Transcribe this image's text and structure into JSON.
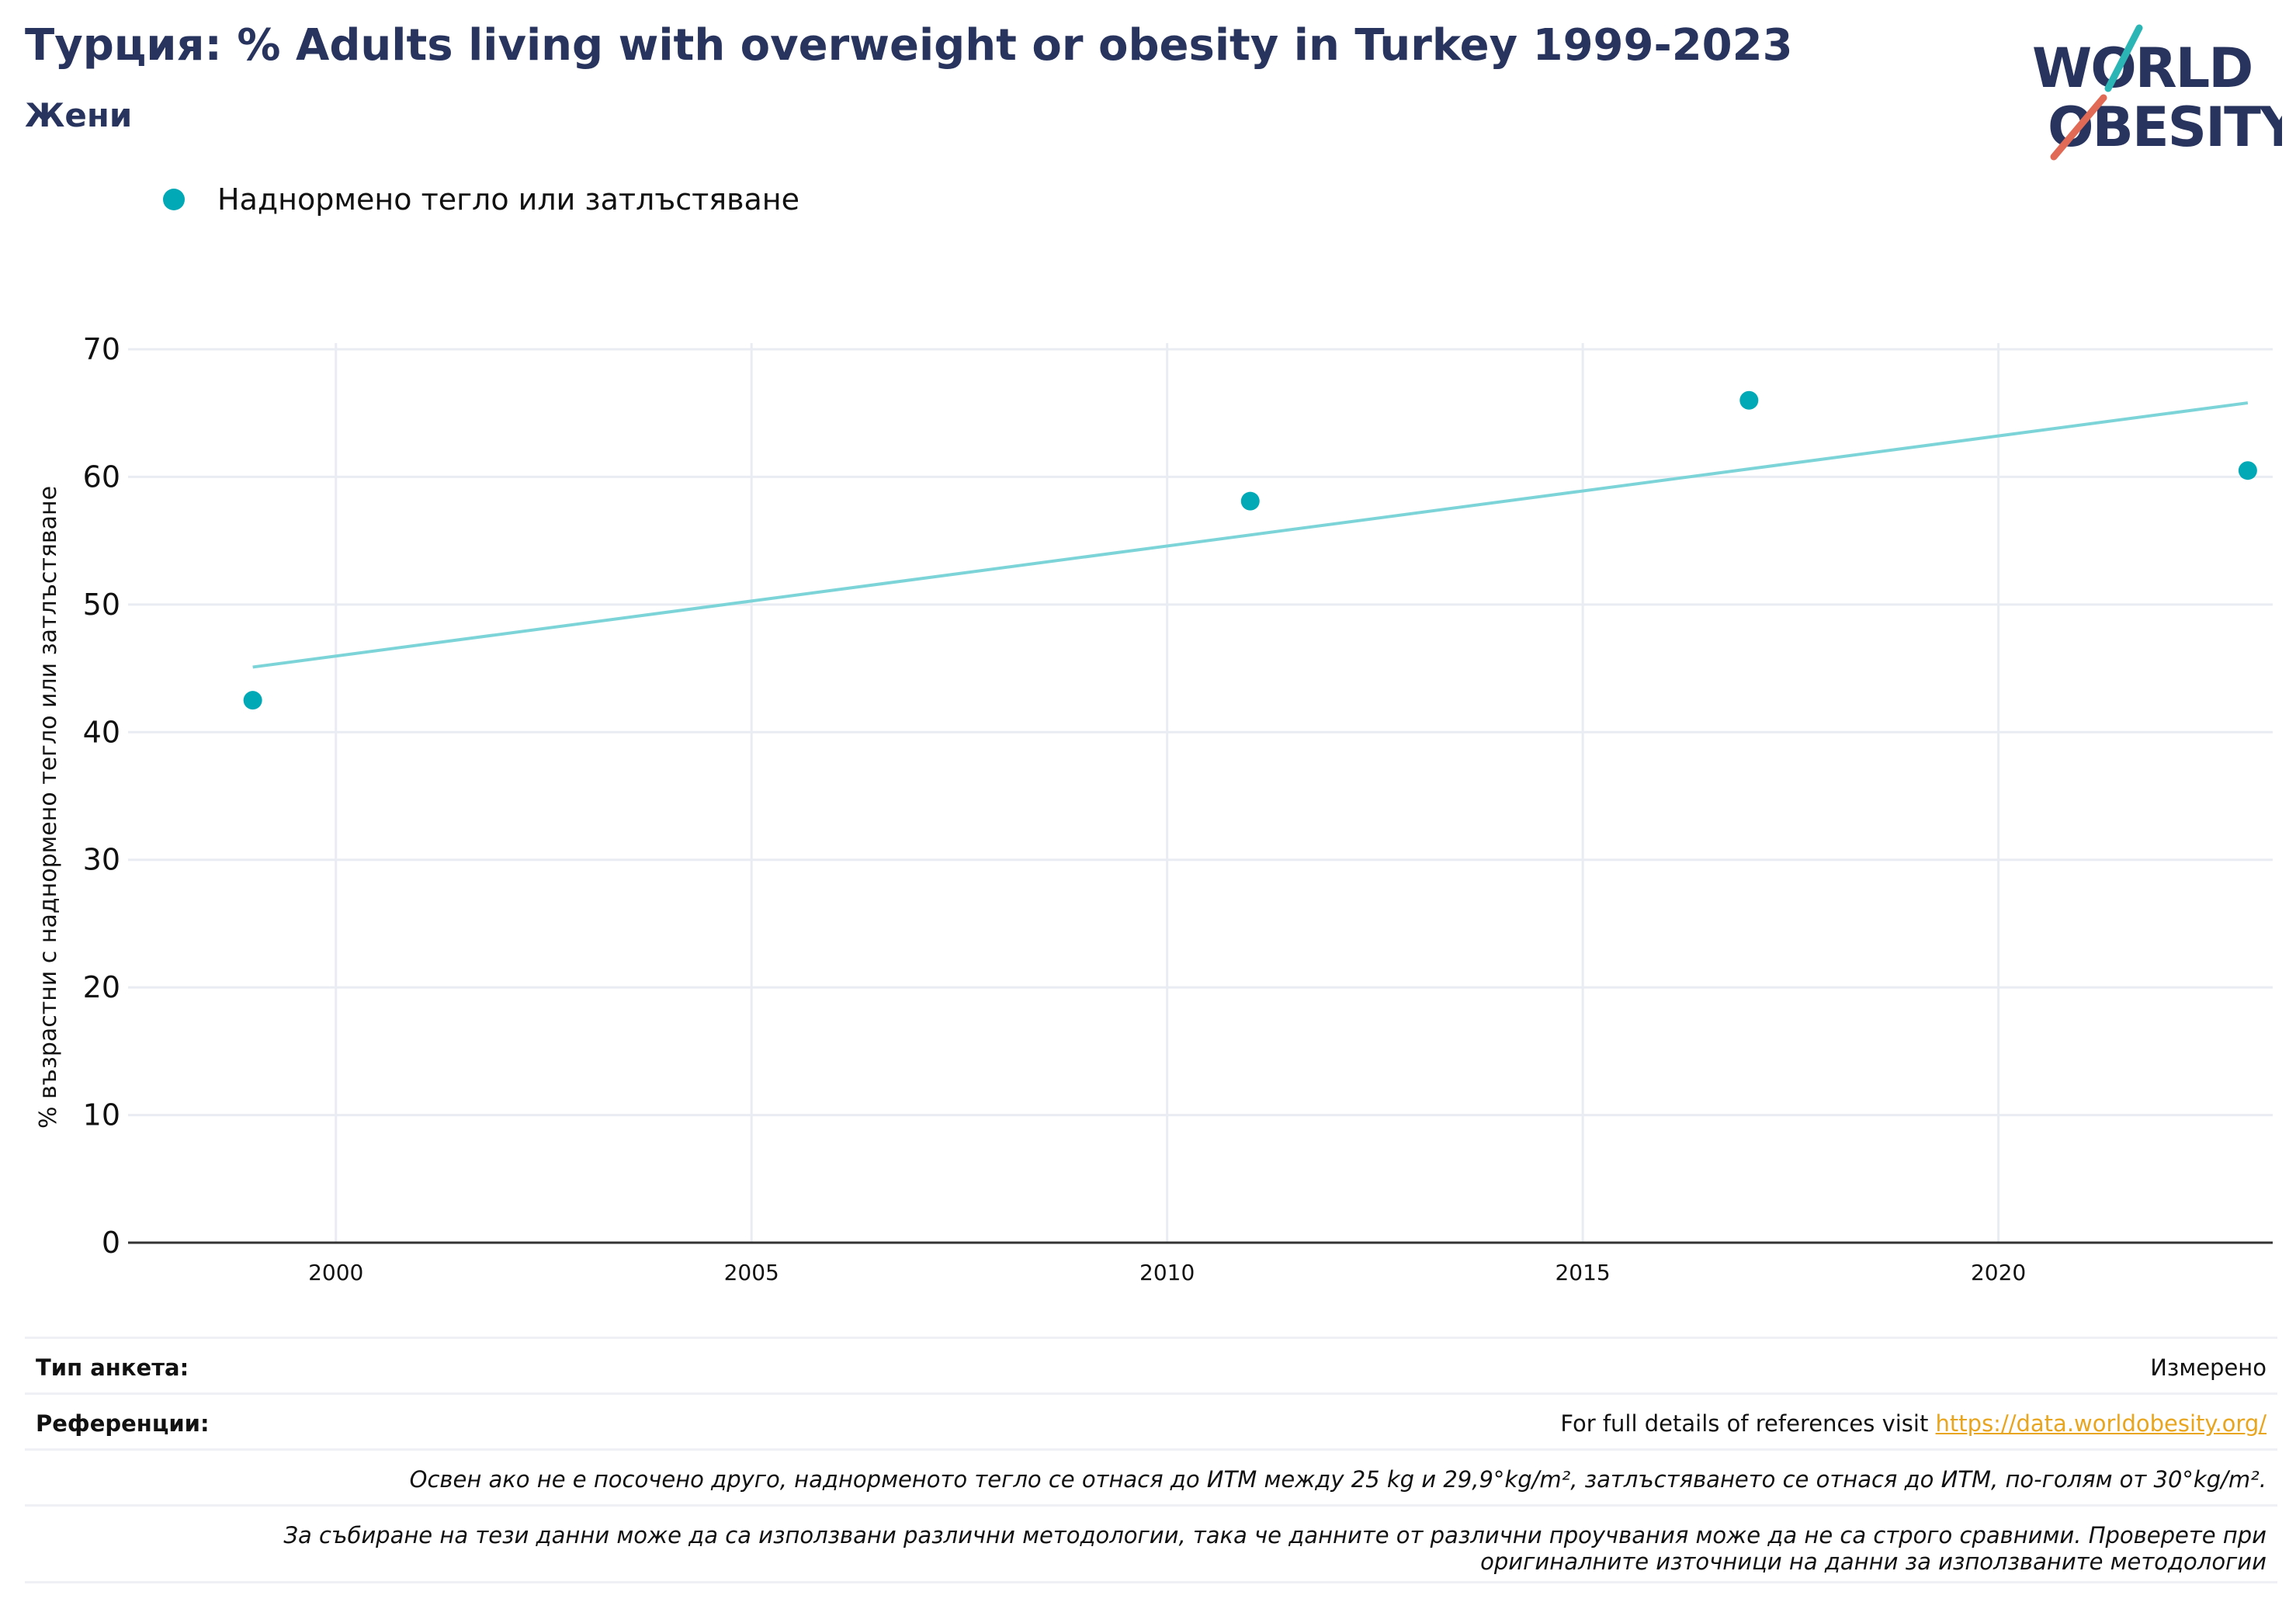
{
  "header": {
    "title": "Турция: % Adults living with overweight or obesity in Turkey 1999-2023",
    "subtitle": "Жени"
  },
  "logo": {
    "line1": "WORLD",
    "line2": "OBESITY",
    "colors": {
      "text": "#28345e",
      "slash_top": "#2bb5b5",
      "slash_bottom": "#e06a55"
    }
  },
  "legend": {
    "label": "Наднормено тегло или затлъстяване",
    "color": "#00a9b5"
  },
  "chart_data": {
    "type": "scatter",
    "ylabel": "% възрастни с наднормено тегло или затлъстяване",
    "xlabel": "",
    "xlim": [
      1997.5,
      2023.3
    ],
    "ylim": [
      0,
      70
    ],
    "x_ticks": [
      2000,
      2005,
      2010,
      2015,
      2020
    ],
    "y_ticks": [
      0,
      10,
      20,
      30,
      40,
      50,
      60,
      70
    ],
    "grid": true,
    "legend_position": "top-left",
    "series": [
      {
        "name": "Наднормено тегло или затлъстяване",
        "color": "#00a9b5",
        "points": [
          {
            "x": 1999,
            "y": 42.5
          },
          {
            "x": 2011,
            "y": 58.1
          },
          {
            "x": 2017,
            "y": 66.0
          },
          {
            "x": 2023,
            "y": 60.5
          }
        ]
      }
    ],
    "trendline": {
      "color": "#7dd4d8",
      "points": [
        {
          "x": 1999,
          "y": 45.1
        },
        {
          "x": 2023,
          "y": 65.8
        }
      ]
    }
  },
  "footer": {
    "survey_label": "Тип анкета:",
    "survey_value": "Измерено",
    "references_label": "Референции:",
    "references_text": "For full details of references visit ",
    "references_link": "https://data.worldobesity.org/",
    "note1": "Освен ако не е посочено друго, наднорменото тегло се отнася до ИТМ между 25 kg и 29,9°kg/m², затлъстяването се отнася до ИТМ, по-голям от 30°kg/m².",
    "note2_line1": "За събиране на тези данни може да са използвани различни методологии, така че данните от различни проучвания може да не са строго сравними. Проверете при",
    "note2_line2": "оригиналните източници на данни за използваните методологии"
  }
}
